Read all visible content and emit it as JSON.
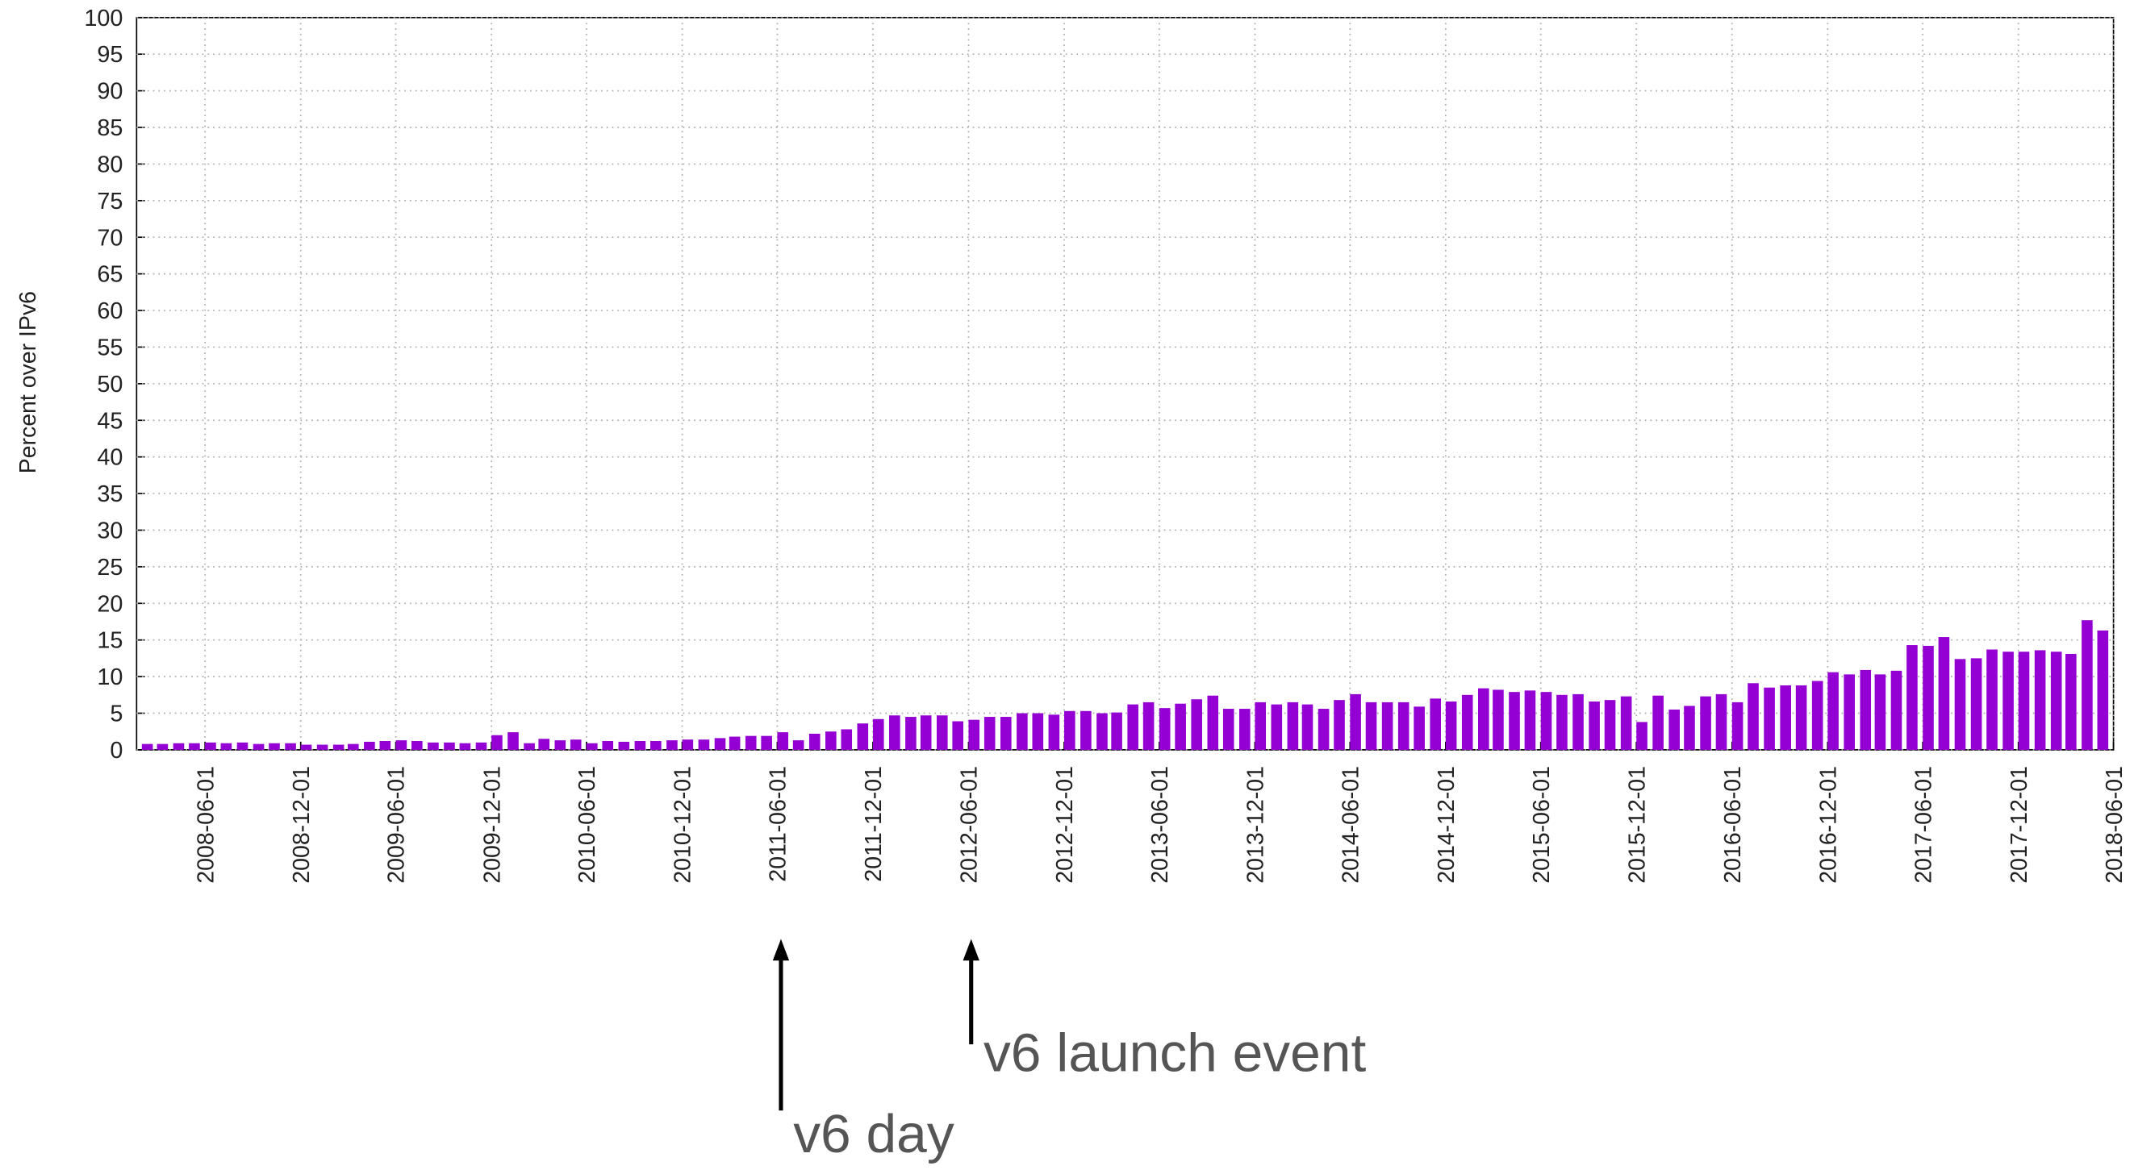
{
  "chart_data": {
    "type": "bar",
    "y_label": "Percent over IPv6",
    "color": "#9400d3",
    "grid": true,
    "x": [
      "2008-02-01",
      "2008-03-01",
      "2008-04-01",
      "2008-05-01",
      "2008-06-01",
      "2008-07-01",
      "2008-08-01",
      "2008-09-01",
      "2008-10-01",
      "2008-11-01",
      "2008-12-01",
      "2009-01-01",
      "2009-02-01",
      "2009-03-01",
      "2009-04-01",
      "2009-05-01",
      "2009-06-01",
      "2009-07-01",
      "2009-08-01",
      "2009-09-01",
      "2009-10-01",
      "2009-11-01",
      "2009-12-01",
      "2010-01-01",
      "2010-02-01",
      "2010-03-01",
      "2010-04-01",
      "2010-05-01",
      "2010-06-01",
      "2010-07-01",
      "2010-08-01",
      "2010-09-01",
      "2010-10-01",
      "2010-11-01",
      "2010-12-01",
      "2011-01-01",
      "2011-02-01",
      "2011-03-01",
      "2011-04-01",
      "2011-05-01",
      "2011-06-01",
      "2011-07-01",
      "2011-08-01",
      "2011-09-01",
      "2011-10-01",
      "2011-11-01",
      "2011-12-01",
      "2012-01-01",
      "2012-02-01",
      "2012-03-01",
      "2012-04-01",
      "2012-05-01",
      "2012-06-01",
      "2012-07-01",
      "2012-08-01",
      "2012-09-01",
      "2012-10-01",
      "2012-11-01",
      "2012-12-01",
      "2013-01-01",
      "2013-02-01",
      "2013-03-01",
      "2013-04-01",
      "2013-05-01",
      "2013-06-01",
      "2013-07-01",
      "2013-08-01",
      "2013-09-01",
      "2013-10-01",
      "2013-11-01",
      "2013-12-01",
      "2014-01-01",
      "2014-02-01",
      "2014-03-01",
      "2014-04-01",
      "2014-05-01",
      "2014-06-01",
      "2014-07-01",
      "2014-08-01",
      "2014-09-01",
      "2014-10-01",
      "2014-11-01",
      "2014-12-01",
      "2015-01-01",
      "2015-02-01",
      "2015-03-01",
      "2015-04-01",
      "2015-05-01",
      "2015-06-01",
      "2015-07-01",
      "2015-08-01",
      "2015-09-01",
      "2015-10-01",
      "2015-11-01",
      "2015-12-01",
      "2016-01-01",
      "2016-02-01",
      "2016-03-01",
      "2016-04-01",
      "2016-05-01",
      "2016-06-01",
      "2016-07-01",
      "2016-08-01",
      "2016-09-01",
      "2016-10-01",
      "2016-11-01",
      "2016-12-01",
      "2017-01-01",
      "2017-02-01",
      "2017-03-01",
      "2017-04-01",
      "2017-05-01",
      "2017-06-01",
      "2017-07-01",
      "2017-08-01",
      "2017-09-01",
      "2017-10-01",
      "2017-11-01",
      "2017-12-01",
      "2018-01-01",
      "2018-02-01",
      "2018-03-01",
      "2018-04-01",
      "2018-05-01"
    ],
    "values": [
      0.8,
      0.8,
      0.9,
      0.9,
      1.0,
      0.9,
      1.0,
      0.8,
      0.9,
      0.9,
      0.7,
      0.7,
      0.7,
      0.8,
      1.1,
      1.2,
      1.3,
      1.2,
      1.0,
      1.0,
      0.9,
      1.0,
      2.0,
      2.4,
      0.9,
      1.5,
      1.3,
      1.4,
      0.9,
      1.2,
      1.1,
      1.2,
      1.2,
      1.3,
      1.4,
      1.4,
      1.6,
      1.8,
      1.9,
      1.9,
      2.4,
      1.3,
      2.2,
      2.5,
      2.8,
      3.6,
      4.2,
      4.7,
      4.5,
      4.7,
      4.7,
      3.9,
      4.1,
      4.5,
      4.5,
      5.0,
      5.0,
      4.8,
      5.3,
      5.3,
      5.0,
      5.1,
      6.2,
      6.5,
      5.7,
      6.3,
      6.9,
      7.4,
      5.6,
      5.6,
      6.5,
      6.2,
      6.5,
      6.2,
      5.6,
      6.8,
      7.6,
      6.5,
      6.5,
      6.5,
      5.9,
      7.0,
      6.6,
      7.5,
      8.4,
      8.2,
      7.9,
      8.1,
      7.9,
      7.5,
      7.6,
      6.6,
      6.8,
      7.3,
      3.8,
      7.4,
      5.5,
      6.0,
      7.3,
      7.6,
      6.5,
      9.1,
      8.5,
      8.8,
      8.8,
      9.4,
      10.6,
      10.3,
      10.9,
      10.3,
      10.8,
      14.3,
      14.2,
      15.4,
      12.4,
      12.5,
      13.7,
      13.4,
      13.4,
      13.6,
      13.4,
      13.1,
      17.7,
      16.3
    ],
    "xlim": [
      "2008-01-22",
      "2018-06-01"
    ],
    "xticks": [
      "2008-06-01",
      "2008-12-01",
      "2009-06-01",
      "2009-12-01",
      "2010-06-01",
      "2010-12-01",
      "2011-06-01",
      "2011-12-01",
      "2012-06-01",
      "2012-12-01",
      "2013-06-01",
      "2013-12-01",
      "2014-06-01",
      "2014-12-01",
      "2015-06-01",
      "2015-12-01",
      "2016-06-01",
      "2016-12-01",
      "2017-06-01",
      "2017-12-01",
      "2018-06-01"
    ],
    "ylim": [
      0,
      100
    ],
    "yticks": [
      0,
      5,
      10,
      15,
      20,
      25,
      30,
      35,
      40,
      45,
      50,
      55,
      60,
      65,
      70,
      75,
      80,
      85,
      90,
      95,
      100
    ],
    "annotations": [
      {
        "text": "v6 day",
        "x": "2011-06-08"
      },
      {
        "text": "v6 launch event",
        "x": "2012-06-06"
      }
    ]
  }
}
